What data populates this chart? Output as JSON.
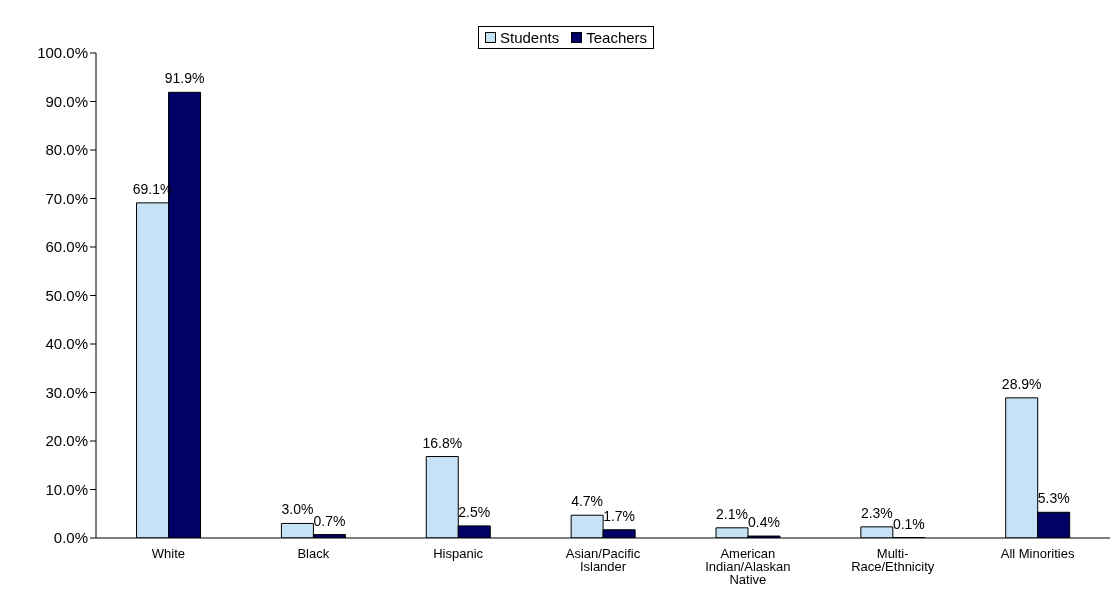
{
  "chart_data": {
    "type": "bar",
    "categories": [
      "White",
      "Black",
      "Hispanic",
      "Asian/Pacific Islander",
      "American Indian/Alaskan Native",
      "Multi-Race/Ethnicity",
      "All Minorities"
    ],
    "series": [
      {
        "name": "Students",
        "color": "#c6e2f7",
        "values": [
          69.1,
          3.0,
          16.8,
          4.7,
          2.1,
          2.3,
          28.9
        ],
        "value_labels": [
          "69.1%",
          "3.0%",
          "16.8%",
          "4.7%",
          "2.1%",
          "2.3%",
          "28.9%"
        ]
      },
      {
        "name": "Teachers",
        "color": "#000066",
        "values": [
          91.9,
          0.7,
          2.5,
          1.7,
          0.4,
          0.1,
          5.3
        ],
        "value_labels": [
          "91.9%",
          "0.7%",
          "2.5%",
          "1.7%",
          "0.4%",
          "0.1%",
          "5.3%"
        ]
      }
    ],
    "ylim": [
      0,
      100
    ],
    "yticks": [
      {
        "value": 0,
        "label": "0.0%"
      },
      {
        "value": 10,
        "label": "10.0%"
      },
      {
        "value": 20,
        "label": "20.0%"
      },
      {
        "value": 30,
        "label": "30.0%"
      },
      {
        "value": 40,
        "label": "40.0%"
      },
      {
        "value": 50,
        "label": "50.0%"
      },
      {
        "value": 60,
        "label": "60.0%"
      },
      {
        "value": 70,
        "label": "70.0%"
      },
      {
        "value": 80,
        "label": "80.0%"
      },
      {
        "value": 90,
        "label": "90.0%"
      },
      {
        "value": 100,
        "label": "100.0%"
      }
    ],
    "grid": false,
    "legend": "top"
  }
}
